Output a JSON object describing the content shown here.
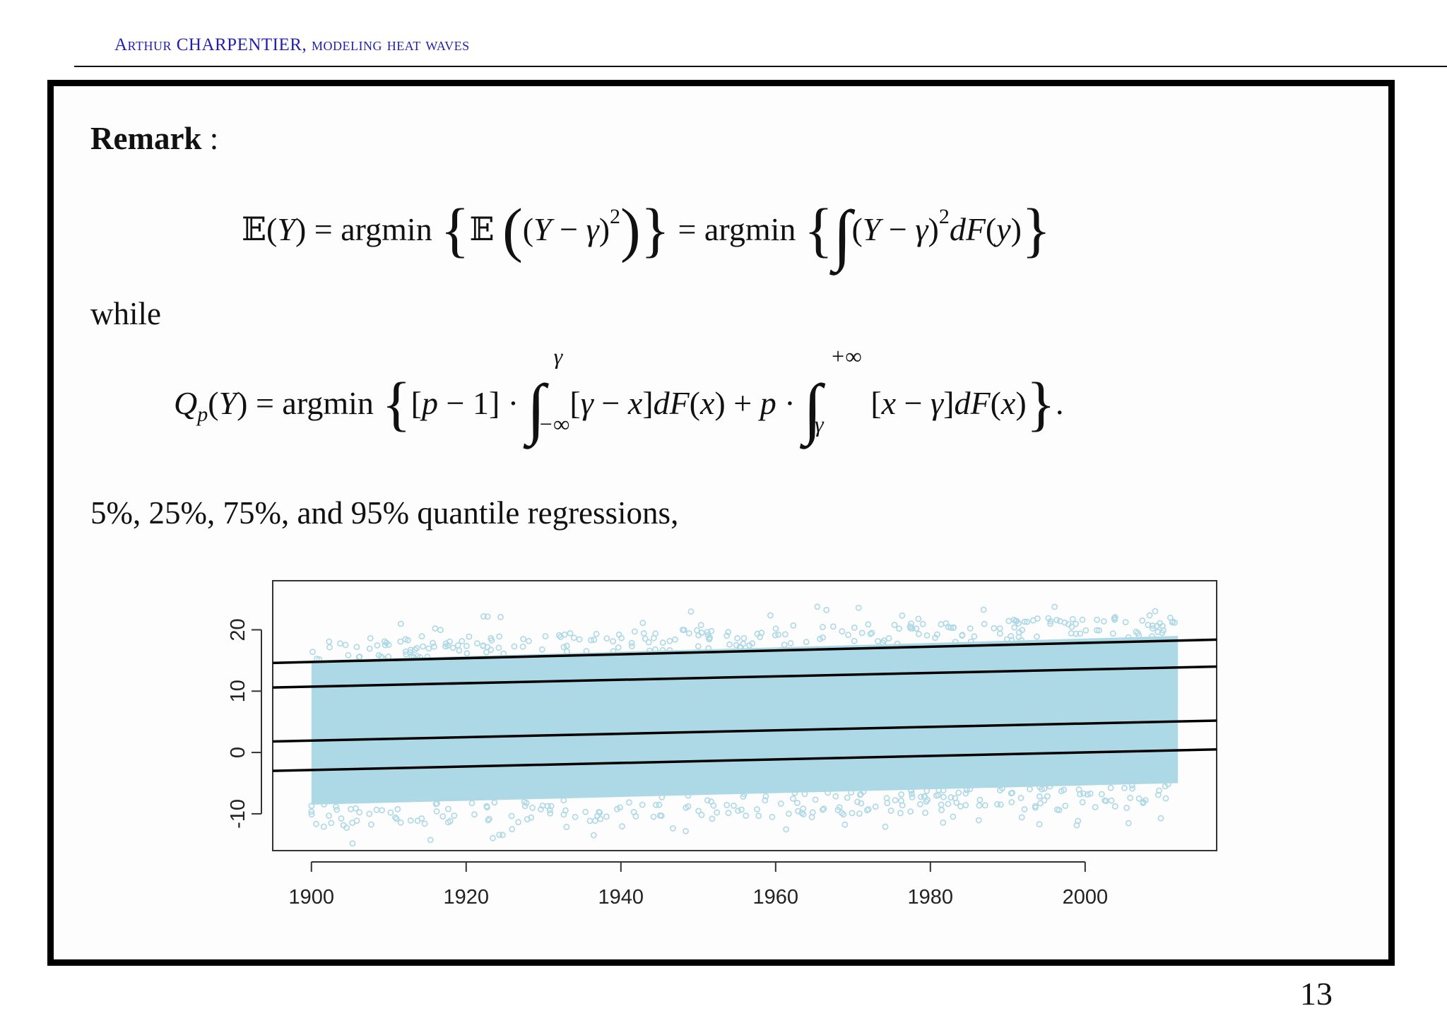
{
  "header": {
    "text": "Arthur CHARPENTIER, modeling heat waves"
  },
  "remark": {
    "label": "Remark",
    "colon": " :"
  },
  "while_text": "while",
  "quantile_text": "5%, 25%, 75%, and 95% quantile regressions,",
  "page_number": "13",
  "chart_data": {
    "type": "scatter",
    "title": "",
    "xlabel": "",
    "ylabel": "",
    "xlim": [
      1895,
      2017
    ],
    "ylim": [
      -16,
      28
    ],
    "x_ticks": [
      1900,
      1920,
      1940,
      1960,
      1980,
      2000
    ],
    "y_ticks": [
      -10,
      0,
      10,
      20
    ],
    "point_color": "#add8e6",
    "line_color": "#000000",
    "data_range": {
      "x_start": 1900,
      "x_end": 2012
    },
    "band": {
      "low_start": -8.5,
      "low_end": -5,
      "high_start": 15,
      "high_end": 19
    },
    "regression_lines": [
      {
        "quantile": 0.05,
        "x": [
          1895,
          2017
        ],
        "y": [
          -3.0,
          0.5
        ]
      },
      {
        "quantile": 0.25,
        "x": [
          1895,
          2017
        ],
        "y": [
          1.8,
          5.2
        ]
      },
      {
        "quantile": 0.75,
        "x": [
          1895,
          2017
        ],
        "y": [
          10.6,
          14.0
        ]
      },
      {
        "quantile": 0.95,
        "x": [
          1895,
          2017
        ],
        "y": [
          14.6,
          18.4
        ]
      }
    ]
  }
}
